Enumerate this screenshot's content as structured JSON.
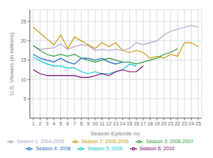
{
  "chart_data": {
    "type": "line",
    "title": "",
    "xlabel": "Season Episode no.",
    "ylabel": "U.S. Viewers (in millions)",
    "x": [
      1,
      2,
      3,
      4,
      5,
      6,
      7,
      8,
      9,
      10,
      11,
      12,
      13,
      14,
      15,
      16,
      17,
      18,
      19,
      20,
      21,
      22,
      23,
      24,
      25
    ],
    "series": [
      {
        "name": "Season 1: 2004-2005",
        "color": "#b0a0c8",
        "values": [
          18.6,
          17.8,
          18.0,
          18.2,
          19.2,
          17.8,
          18.5,
          19.0,
          18.8,
          17.5,
          17.8,
          17.5,
          17.8,
          17.5,
          18.0,
          19.5,
          19.0,
          19.5,
          20.0,
          21.5,
          22.5,
          23.0,
          23.5,
          24.0,
          23.5
        ]
      },
      {
        "name": "Season 2: 2005-2006",
        "color": "#c8960a",
        "values": [
          23.5,
          22.0,
          20.5,
          19.0,
          21.5,
          18.0,
          21.0,
          20.0,
          19.0,
          18.0,
          19.5,
          18.5,
          19.5,
          17.5,
          17.0,
          17.5,
          17.0,
          15.5,
          16.0,
          15.5,
          16.5,
          16.0,
          19.5,
          19.5,
          18.5
        ]
      },
      {
        "name": "Season 3: 2006-2007",
        "color": "#2a9a3a",
        "values": [
          18.8,
          17.5,
          16.5,
          16.0,
          16.5,
          16.0,
          16.5,
          15.5,
          15.0,
          14.5,
          15.0,
          15.5,
          15.0,
          14.5,
          14.5,
          14.0,
          14.5,
          15.0,
          15.5,
          16.5,
          17.0,
          18.0,
          null,
          null,
          null
        ]
      },
      {
        "name": "Season 4: 2008",
        "color": "#1a6abf",
        "values": [
          16.5,
          15.5,
          15.0,
          14.5,
          15.5,
          14.5,
          14.0,
          15.5,
          15.5,
          15.0,
          15.5,
          14.5,
          14.0,
          14.5,
          null,
          null,
          null,
          null,
          null,
          null,
          null,
          null,
          null,
          null,
          null
        ]
      },
      {
        "name": "Season 5: 2009",
        "color": "#00c8d0",
        "values": [
          15.8,
          14.8,
          14.0,
          13.5,
          13.5,
          13.0,
          13.0,
          12.0,
          11.5,
          12.0,
          11.5,
          11.5,
          12.0,
          12.5,
          14.0,
          13.5,
          null,
          null,
          null,
          null,
          null,
          null,
          null,
          null,
          null
        ]
      },
      {
        "name": "Season 6: 2010",
        "color": "#7a0070",
        "values": [
          12.5,
          11.5,
          11.0,
          11.0,
          11.0,
          11.0,
          11.0,
          10.5,
          10.5,
          11.0,
          11.5,
          11.0,
          12.0,
          12.5,
          12.0,
          12.0,
          13.5,
          null,
          null,
          null,
          null,
          null,
          null,
          null,
          null
        ]
      }
    ],
    "xlim": [
      0.5,
      25.5
    ],
    "xticks": [
      1,
      2,
      3,
      4,
      5,
      6,
      7,
      8,
      9,
      10,
      11,
      12,
      13,
      14,
      15,
      16,
      17,
      18,
      19,
      20,
      21,
      22,
      23,
      24,
      25
    ],
    "ylim": [
      0,
      28
    ],
    "yticks": [
      5,
      10,
      15,
      20,
      25
    ],
    "grid": true,
    "legend": "bottom"
  }
}
